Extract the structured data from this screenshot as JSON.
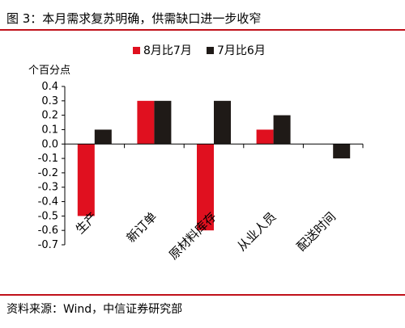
{
  "figure": {
    "title": "图 3：本月需求复苏明确，供需缺口进一步收窄",
    "source": "资料来源：Wind，中信证券研究部"
  },
  "chart_data": {
    "type": "bar",
    "title": "",
    "unit_label": "个百分点",
    "xlabel": "",
    "ylabel": "",
    "ylim": [
      -0.7,
      0.4
    ],
    "yticks": [
      "0.4",
      "0.3",
      "0.2",
      "0.1",
      "0.0",
      "-0.1",
      "-0.2",
      "-0.3",
      "-0.4",
      "-0.5",
      "-0.6",
      "-0.7"
    ],
    "categories": [
      "生产",
      "新订单",
      "原材料库存",
      "从业人员",
      "配送时间"
    ],
    "series": [
      {
        "name": "8月比7月",
        "color": "#e0101f",
        "values": [
          -0.5,
          0.3,
          -0.6,
          0.1,
          0.0
        ]
      },
      {
        "name": "7月比6月",
        "color": "#1f1a17",
        "values": [
          0.1,
          0.3,
          0.3,
          0.2,
          -0.1
        ]
      }
    ],
    "grid": false,
    "legend_position": "top"
  }
}
